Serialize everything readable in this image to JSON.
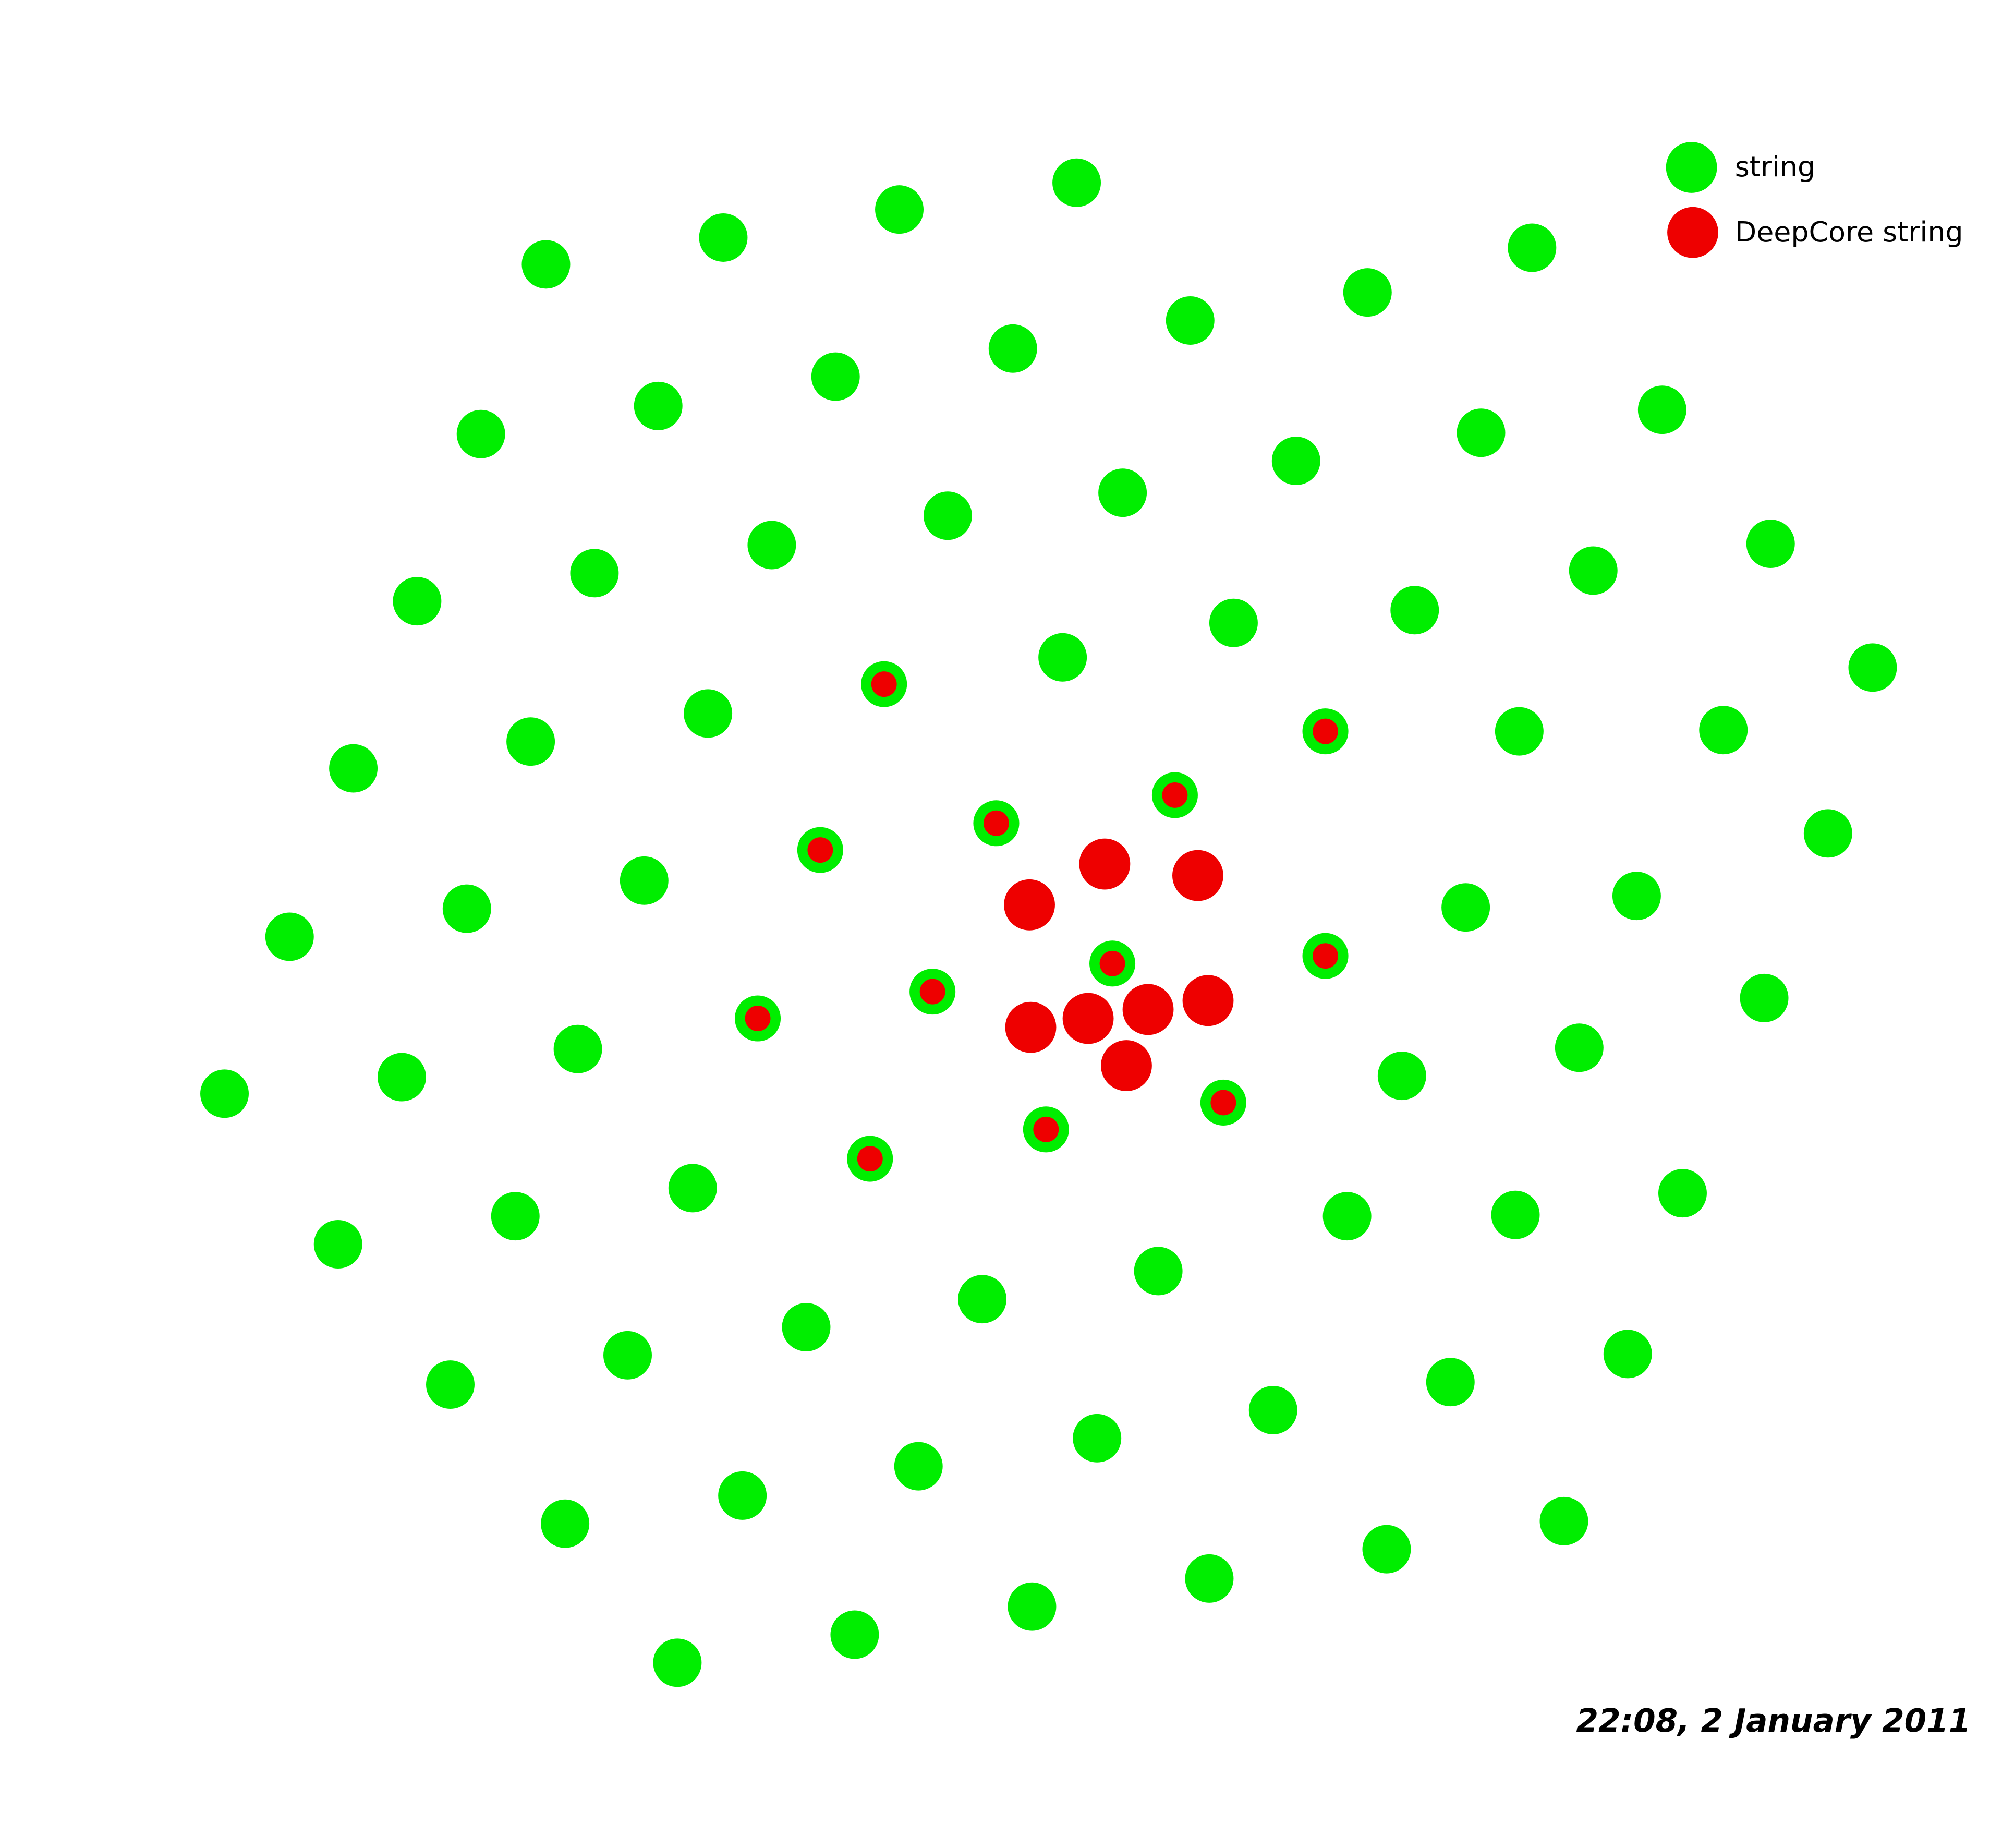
{
  "legend": {
    "items": [
      {
        "label": "string"
      },
      {
        "label": "DeepCore string"
      }
    ]
  },
  "timestamp": "22:08, 2 January 2011"
}
